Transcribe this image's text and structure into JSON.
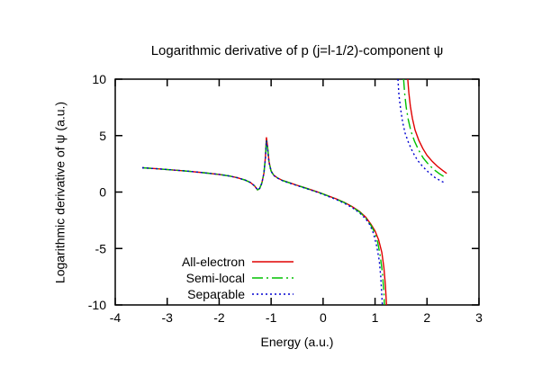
{
  "chart_data": {
    "type": "line",
    "title": "Logarithmic derivative of p (j=l-1/2)-component ψ",
    "xlabel": "Energy (a.u.)",
    "ylabel": "Logarithmic derivative of ψ (a.u.)",
    "xlim": [
      -4,
      3
    ],
    "ylim": [
      -10,
      10
    ],
    "x_ticks": [
      -4,
      -3,
      -2,
      -1,
      0,
      1,
      2,
      3
    ],
    "y_ticks": [
      -10,
      -5,
      0,
      5,
      10
    ],
    "grid": false,
    "legend_position": "inside-bottom-left",
    "axis_color": "#000000",
    "series": [
      {
        "name": "All-electron",
        "color": "#e00000",
        "style": "solid",
        "segments": [
          [
            [
              -3.48,
              2.15
            ],
            [
              -3.2,
              2.06
            ],
            [
              -2.9,
              1.96
            ],
            [
              -2.6,
              1.85
            ],
            [
              -2.3,
              1.71
            ],
            [
              -2.0,
              1.56
            ],
            [
              -1.8,
              1.42
            ],
            [
              -1.65,
              1.27
            ],
            [
              -1.5,
              1.06
            ],
            [
              -1.4,
              0.85
            ],
            [
              -1.32,
              0.55
            ],
            [
              -1.26,
              0.2
            ],
            [
              -1.22,
              0.32
            ],
            [
              -1.18,
              0.78
            ],
            [
              -1.14,
              1.65
            ],
            [
              -1.11,
              3.1
            ],
            [
              -1.09,
              4.85
            ],
            [
              -1.07,
              4.1
            ],
            [
              -1.04,
              2.7
            ],
            [
              -1.0,
              1.88
            ],
            [
              -0.95,
              1.5
            ],
            [
              -0.88,
              1.26
            ],
            [
              -0.78,
              1.03
            ],
            [
              -0.65,
              0.83
            ],
            [
              -0.5,
              0.6
            ],
            [
              -0.35,
              0.38
            ],
            [
              -0.2,
              0.15
            ],
            [
              -0.05,
              -0.08
            ],
            [
              0.1,
              -0.34
            ],
            [
              0.25,
              -0.6
            ],
            [
              0.4,
              -0.9
            ],
            [
              0.55,
              -1.26
            ],
            [
              0.7,
              -1.72
            ],
            [
              0.82,
              -2.22
            ],
            [
              0.92,
              -2.85
            ],
            [
              1.0,
              -3.45
            ],
            [
              1.07,
              -4.25
            ],
            [
              1.13,
              -5.35
            ],
            [
              1.17,
              -6.7
            ],
            [
              1.2,
              -8.3
            ],
            [
              1.22,
              -10
            ]
          ],
          [
            [
              1.63,
              10
            ],
            [
              1.65,
              8.8
            ],
            [
              1.68,
              7.6
            ],
            [
              1.72,
              6.5
            ],
            [
              1.77,
              5.5
            ],
            [
              1.84,
              4.6
            ],
            [
              1.92,
              3.85
            ],
            [
              2.0,
              3.25
            ],
            [
              2.1,
              2.72
            ],
            [
              2.2,
              2.28
            ],
            [
              2.3,
              1.92
            ],
            [
              2.38,
              1.65
            ]
          ]
        ]
      },
      {
        "name": "Semi-local",
        "color": "#00c000",
        "style": "dash-dot",
        "segments": [
          [
            [
              -3.48,
              2.15
            ],
            [
              -3.2,
              2.06
            ],
            [
              -2.9,
              1.96
            ],
            [
              -2.6,
              1.85
            ],
            [
              -2.3,
              1.71
            ],
            [
              -2.0,
              1.56
            ],
            [
              -1.8,
              1.42
            ],
            [
              -1.65,
              1.27
            ],
            [
              -1.5,
              1.06
            ],
            [
              -1.4,
              0.85
            ],
            [
              -1.32,
              0.55
            ],
            [
              -1.26,
              0.2
            ],
            [
              -1.22,
              0.32
            ],
            [
              -1.18,
              0.78
            ],
            [
              -1.14,
              1.65
            ],
            [
              -1.11,
              3.0
            ],
            [
              -1.09,
              4.65
            ],
            [
              -1.07,
              4.0
            ],
            [
              -1.04,
              2.65
            ],
            [
              -1.0,
              1.86
            ],
            [
              -0.95,
              1.49
            ],
            [
              -0.88,
              1.25
            ],
            [
              -0.78,
              1.02
            ],
            [
              -0.65,
              0.82
            ],
            [
              -0.5,
              0.59
            ],
            [
              -0.35,
              0.37
            ],
            [
              -0.2,
              0.14
            ],
            [
              -0.05,
              -0.09
            ],
            [
              0.1,
              -0.35
            ],
            [
              0.25,
              -0.62
            ],
            [
              0.4,
              -0.92
            ],
            [
              0.55,
              -1.29
            ],
            [
              0.7,
              -1.76
            ],
            [
              0.82,
              -2.28
            ],
            [
              0.92,
              -2.95
            ],
            [
              0.99,
              -3.55
            ],
            [
              1.05,
              -4.45
            ],
            [
              1.1,
              -5.65
            ],
            [
              1.14,
              -7.1
            ],
            [
              1.17,
              -8.9
            ],
            [
              1.18,
              -10
            ]
          ],
          [
            [
              1.55,
              10
            ],
            [
              1.57,
              8.7
            ],
            [
              1.6,
              7.5
            ],
            [
              1.64,
              6.4
            ],
            [
              1.69,
              5.4
            ],
            [
              1.76,
              4.5
            ],
            [
              1.84,
              3.7
            ],
            [
              1.93,
              3.0
            ],
            [
              2.03,
              2.45
            ],
            [
              2.13,
              2.0
            ],
            [
              2.24,
              1.62
            ],
            [
              2.35,
              1.3
            ]
          ]
        ]
      },
      {
        "name": "Separable",
        "color": "#0000d0",
        "style": "dotted",
        "segments": [
          [
            [
              -3.48,
              2.15
            ],
            [
              -3.2,
              2.06
            ],
            [
              -2.9,
              1.96
            ],
            [
              -2.6,
              1.85
            ],
            [
              -2.3,
              1.71
            ],
            [
              -2.0,
              1.56
            ],
            [
              -1.8,
              1.42
            ],
            [
              -1.65,
              1.27
            ],
            [
              -1.5,
              1.06
            ],
            [
              -1.4,
              0.85
            ],
            [
              -1.32,
              0.55
            ],
            [
              -1.26,
              0.2
            ],
            [
              -1.22,
              0.32
            ],
            [
              -1.18,
              0.78
            ],
            [
              -1.14,
              1.65
            ],
            [
              -1.11,
              2.95
            ],
            [
              -1.09,
              4.55
            ],
            [
              -1.07,
              3.9
            ],
            [
              -1.04,
              2.6
            ],
            [
              -1.0,
              1.84
            ],
            [
              -0.95,
              1.47
            ],
            [
              -0.88,
              1.24
            ],
            [
              -0.78,
              1.0
            ],
            [
              -0.65,
              0.8
            ],
            [
              -0.5,
              0.57
            ],
            [
              -0.35,
              0.35
            ],
            [
              -0.2,
              0.12
            ],
            [
              -0.05,
              -0.12
            ],
            [
              0.1,
              -0.38
            ],
            [
              0.25,
              -0.66
            ],
            [
              0.4,
              -0.97
            ],
            [
              0.55,
              -1.35
            ],
            [
              0.7,
              -1.84
            ],
            [
              0.82,
              -2.38
            ],
            [
              0.9,
              -2.9
            ],
            [
              0.97,
              -3.65
            ],
            [
              1.03,
              -4.75
            ],
            [
              1.08,
              -6.05
            ],
            [
              1.11,
              -7.5
            ],
            [
              1.13,
              -9.2
            ],
            [
              1.14,
              -10
            ]
          ],
          [
            [
              1.44,
              10
            ],
            [
              1.46,
              8.6
            ],
            [
              1.49,
              7.4
            ],
            [
              1.53,
              6.2
            ],
            [
              1.58,
              5.2
            ],
            [
              1.65,
              4.3
            ],
            [
              1.73,
              3.5
            ],
            [
              1.82,
              2.8
            ],
            [
              1.92,
              2.25
            ],
            [
              2.03,
              1.75
            ],
            [
              2.15,
              1.3
            ],
            [
              2.28,
              0.95
            ],
            [
              2.33,
              0.85
            ]
          ]
        ]
      }
    ]
  }
}
